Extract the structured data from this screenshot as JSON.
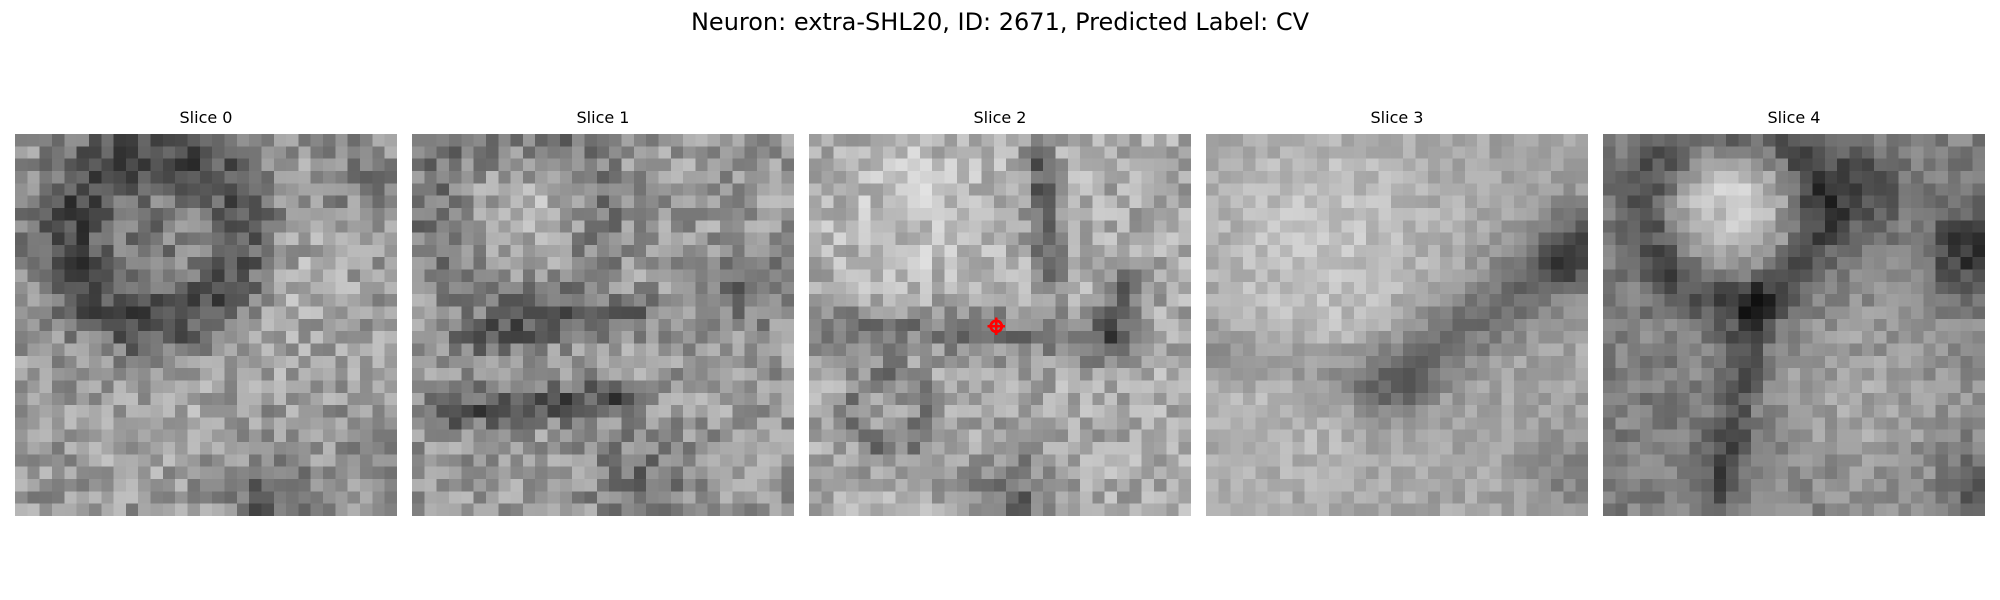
{
  "figure": {
    "title": "Neuron: extra-SHL20, ID: 2671, Predicted Label: CV"
  },
  "slices": [
    {
      "title": "Slice 0",
      "feature": "ring-top-left"
    },
    {
      "title": "Slice 1",
      "feature": "horizontal-bands"
    },
    {
      "title": "Slice 2",
      "feature": "arc-with-marker"
    },
    {
      "title": "Slice 3",
      "feature": "smooth-diagonal"
    },
    {
      "title": "Slice 4",
      "feature": "bright-blob-dark-edges"
    }
  ],
  "colors": {
    "marker": "#ff0000",
    "colormap": "gray"
  }
}
